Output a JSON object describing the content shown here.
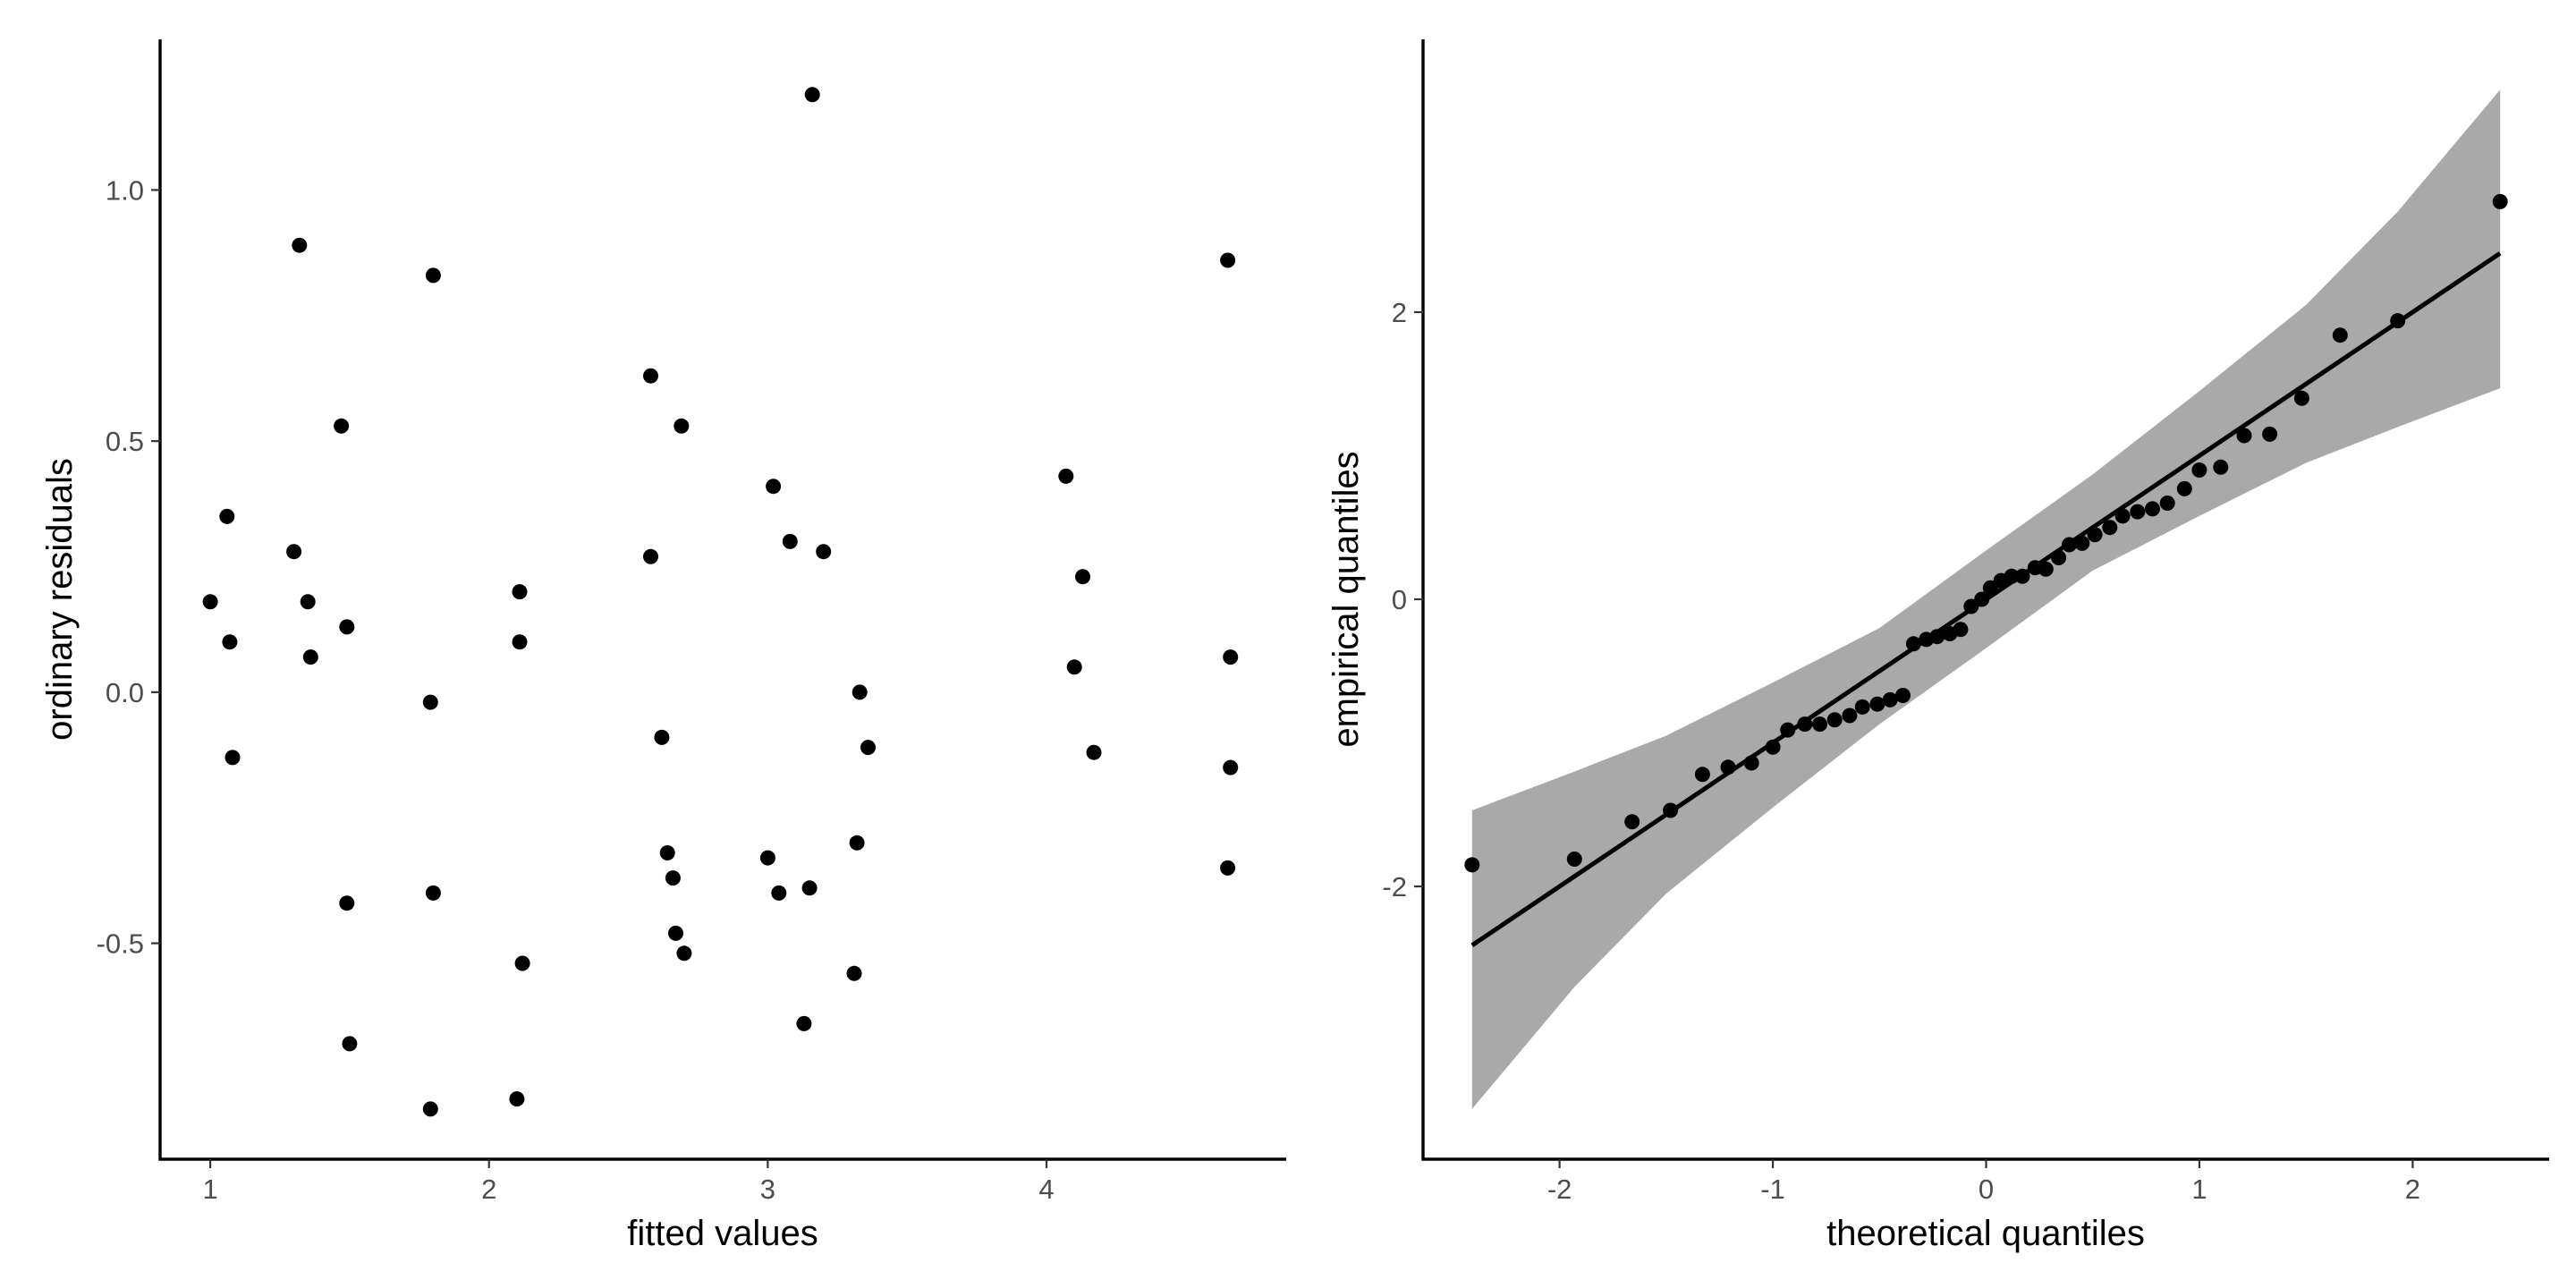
{
  "chart_data": [
    {
      "type": "scatter",
      "xlabel": "fitted values",
      "ylabel": "ordinary residuals",
      "xlim": [
        0.82,
        4.86
      ],
      "ylim": [
        -0.93,
        1.3
      ],
      "xticks": [
        1,
        2,
        3,
        4
      ],
      "xtick_labels": [
        "1",
        "2",
        "3",
        "4"
      ],
      "yticks": [
        -0.5,
        0,
        0.5,
        1
      ],
      "ytick_labels": [
        "-0.5",
        "0.0",
        "0.5",
        "1.0"
      ],
      "grid": false,
      "legend": "none",
      "point_color": "#000000",
      "points": [
        {
          "x": 1.0,
          "y": 0.18
        },
        {
          "x": 1.06,
          "y": 0.35
        },
        {
          "x": 1.07,
          "y": 0.1
        },
        {
          "x": 1.08,
          "y": -0.13
        },
        {
          "x": 1.3,
          "y": 0.28
        },
        {
          "x": 1.32,
          "y": 0.89
        },
        {
          "x": 1.35,
          "y": 0.18
        },
        {
          "x": 1.36,
          "y": 0.07
        },
        {
          "x": 1.47,
          "y": 0.53
        },
        {
          "x": 1.49,
          "y": 0.13
        },
        {
          "x": 1.49,
          "y": -0.42
        },
        {
          "x": 1.5,
          "y": -0.7
        },
        {
          "x": 1.79,
          "y": -0.02
        },
        {
          "x": 1.8,
          "y": 0.83
        },
        {
          "x": 1.8,
          "y": -0.4
        },
        {
          "x": 1.79,
          "y": -0.83
        },
        {
          "x": 2.11,
          "y": 0.2
        },
        {
          "x": 2.11,
          "y": 0.1
        },
        {
          "x": 2.12,
          "y": -0.54
        },
        {
          "x": 2.1,
          "y": -0.81
        },
        {
          "x": 2.58,
          "y": 0.63
        },
        {
          "x": 2.58,
          "y": 0.27
        },
        {
          "x": 2.62,
          "y": -0.09
        },
        {
          "x": 2.64,
          "y": -0.32
        },
        {
          "x": 2.66,
          "y": -0.37
        },
        {
          "x": 2.67,
          "y": -0.48
        },
        {
          "x": 2.69,
          "y": 0.53
        },
        {
          "x": 2.7,
          "y": -0.52
        },
        {
          "x": 3.0,
          "y": -0.33
        },
        {
          "x": 3.02,
          "y": 0.41
        },
        {
          "x": 3.04,
          "y": -0.4
        },
        {
          "x": 3.08,
          "y": 0.3
        },
        {
          "x": 3.13,
          "y": -0.66
        },
        {
          "x": 3.15,
          "y": -0.39
        },
        {
          "x": 3.16,
          "y": 1.19
        },
        {
          "x": 3.2,
          "y": 0.28
        },
        {
          "x": 3.31,
          "y": -0.56
        },
        {
          "x": 3.32,
          "y": -0.3
        },
        {
          "x": 3.33,
          "y": 0.0
        },
        {
          "x": 3.36,
          "y": -0.11
        },
        {
          "x": 4.07,
          "y": 0.43
        },
        {
          "x": 4.1,
          "y": 0.05
        },
        {
          "x": 4.13,
          "y": 0.23
        },
        {
          "x": 4.17,
          "y": -0.12
        },
        {
          "x": 4.65,
          "y": 0.86
        },
        {
          "x": 4.66,
          "y": 0.07
        },
        {
          "x": 4.66,
          "y": -0.15
        },
        {
          "x": 4.65,
          "y": -0.35
        }
      ]
    },
    {
      "type": "scatter",
      "subtype": "qq-plot",
      "xlabel": "theoretical quantiles",
      "ylabel": "empirical quantiles",
      "xlim": [
        -2.64,
        2.64
      ],
      "ylim": [
        -3.9,
        3.9
      ],
      "xticks": [
        -2,
        -1,
        0,
        1,
        2
      ],
      "xtick_labels": [
        "-2",
        "-1",
        "0",
        "1",
        "2"
      ],
      "yticks": [
        -2,
        0,
        2
      ],
      "ytick_labels": [
        "-2",
        "0",
        "2"
      ],
      "grid": false,
      "legend": "none",
      "point_color": "#000000",
      "band_color": "#a9a9a9",
      "reference_line": {
        "slope": 1.0,
        "intercept": 0.0,
        "x_range": [
          -2.41,
          2.41
        ],
        "color": "#000000"
      },
      "confidence_band": {
        "x": [
          -2.41,
          -1.93,
          -1.5,
          -1.0,
          -0.5,
          0.0,
          0.5,
          1.0,
          1.5,
          1.93,
          2.41
        ],
        "lower": [
          -3.55,
          -2.7,
          -2.05,
          -1.45,
          -0.87,
          -0.34,
          0.2,
          0.58,
          0.95,
          1.2,
          1.47
        ],
        "upper": [
          -1.47,
          -1.2,
          -0.95,
          -0.58,
          -0.2,
          0.34,
          0.87,
          1.45,
          2.05,
          2.7,
          3.55
        ]
      },
      "points": [
        {
          "x": -2.41,
          "y": -1.85
        },
        {
          "x": -1.93,
          "y": -1.81
        },
        {
          "x": -1.66,
          "y": -1.55
        },
        {
          "x": -1.48,
          "y": -1.47
        },
        {
          "x": -1.33,
          "y": -1.22
        },
        {
          "x": -1.21,
          "y": -1.17
        },
        {
          "x": -1.1,
          "y": -1.14
        },
        {
          "x": -1.0,
          "y": -1.03
        },
        {
          "x": -0.93,
          "y": -0.91
        },
        {
          "x": -0.85,
          "y": -0.87
        },
        {
          "x": -0.78,
          "y": -0.87
        },
        {
          "x": -0.71,
          "y": -0.84
        },
        {
          "x": -0.64,
          "y": -0.81
        },
        {
          "x": -0.58,
          "y": -0.75
        },
        {
          "x": -0.51,
          "y": -0.73
        },
        {
          "x": -0.45,
          "y": -0.7
        },
        {
          "x": -0.39,
          "y": -0.67
        },
        {
          "x": -0.34,
          "y": -0.31
        },
        {
          "x": -0.28,
          "y": -0.28
        },
        {
          "x": -0.23,
          "y": -0.26
        },
        {
          "x": -0.17,
          "y": -0.24
        },
        {
          "x": -0.12,
          "y": -0.21
        },
        {
          "x": -0.07,
          "y": -0.05
        },
        {
          "x": -0.02,
          "y": 0.0
        },
        {
          "x": 0.02,
          "y": 0.08
        },
        {
          "x": 0.07,
          "y": 0.13
        },
        {
          "x": 0.12,
          "y": 0.16
        },
        {
          "x": 0.17,
          "y": 0.16
        },
        {
          "x": 0.23,
          "y": 0.22
        },
        {
          "x": 0.28,
          "y": 0.21
        },
        {
          "x": 0.34,
          "y": 0.29
        },
        {
          "x": 0.39,
          "y": 0.38
        },
        {
          "x": 0.45,
          "y": 0.39
        },
        {
          "x": 0.51,
          "y": 0.45
        },
        {
          "x": 0.58,
          "y": 0.5
        },
        {
          "x": 0.64,
          "y": 0.58
        },
        {
          "x": 0.71,
          "y": 0.61
        },
        {
          "x": 0.78,
          "y": 0.63
        },
        {
          "x": 0.85,
          "y": 0.67
        },
        {
          "x": 0.93,
          "y": 0.77
        },
        {
          "x": 1.0,
          "y": 0.9
        },
        {
          "x": 1.1,
          "y": 0.92
        },
        {
          "x": 1.21,
          "y": 1.14
        },
        {
          "x": 1.33,
          "y": 1.15
        },
        {
          "x": 1.48,
          "y": 1.4
        },
        {
          "x": 1.66,
          "y": 1.84
        },
        {
          "x": 1.93,
          "y": 1.94
        },
        {
          "x": 2.41,
          "y": 2.77
        }
      ]
    }
  ]
}
